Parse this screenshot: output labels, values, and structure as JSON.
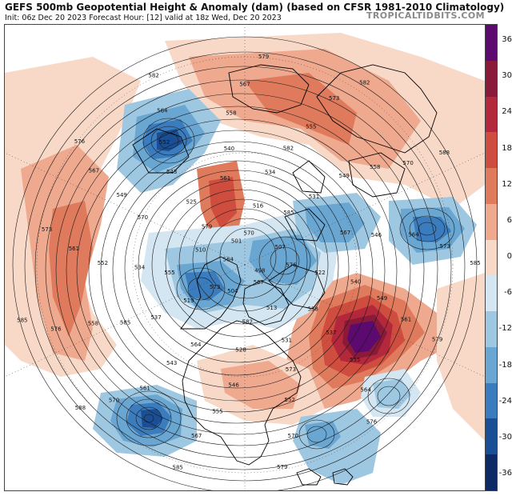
{
  "header": {
    "title": "GEFS 500mb Geopotential Height & Anomaly (dam) (based on CFSR 1981-2010 Climatology)",
    "subtitle": "Init: 06z Dec 20 2023   Forecast Hour: [12]   valid at 18z Wed, Dec 20 2023",
    "brand": "TROPICALTIDBITS.COM"
  },
  "colorbar": {
    "ticks": [
      "36",
      "30",
      "24",
      "18",
      "12",
      "6",
      "0",
      "-6",
      "-12",
      "-18",
      "-24",
      "-30",
      "-36"
    ],
    "values": [
      36,
      30,
      24,
      18,
      12,
      6,
      0,
      -6,
      -12,
      -18,
      -24,
      -30,
      -36
    ],
    "colors": [
      "#5c0a70",
      "#8b1a3a",
      "#b3283a",
      "#cf4d3e",
      "#e07a5c",
      "#eea98f",
      "#f8d9c8",
      "#d3e6f2",
      "#9ec8e2",
      "#6aa6d2",
      "#3a7cbd",
      "#1b4f95",
      "#0c2a66"
    ]
  },
  "map": {
    "projection": "north-polar-stereographic",
    "contour_interval_dam": 3,
    "height_labels": [
      "585",
      "588",
      "579",
      "576",
      "573",
      "570",
      "567",
      "564",
      "561",
      "558",
      "555",
      "552",
      "549",
      "546",
      "543",
      "540",
      "537",
      "534",
      "531",
      "528",
      "525",
      "522",
      "519",
      "516",
      "513",
      "510",
      "507",
      "504",
      "501",
      "498",
      "585",
      "582",
      "579",
      "576",
      "573",
      "570",
      "567",
      "564",
      "561",
      "558",
      "555",
      "552",
      "549",
      "585",
      "582",
      "573",
      "570",
      "567",
      "564",
      "561",
      "558",
      "555",
      "585",
      "582",
      "579",
      "576",
      "573",
      "570",
      "567",
      "564",
      "588",
      "585",
      "582",
      "579",
      "576",
      "573",
      "570",
      "567",
      "564",
      "561",
      "558",
      "555",
      "552",
      "549",
      "546",
      "543",
      "540",
      "537",
      "534",
      "531"
    ],
    "anomaly_centers": [
      {
        "kind": "positive",
        "value_dam": 36,
        "region": "Northwest Atlantic / east of Canada"
      },
      {
        "kind": "positive",
        "value_dam": 24,
        "region": "Chukchi / East Siberian Sea"
      },
      {
        "kind": "positive",
        "value_dam": 18,
        "region": "Northeast Pacific"
      },
      {
        "kind": "positive",
        "value_dam": 12,
        "region": "Eastern Europe / Russia"
      },
      {
        "kind": "negative",
        "value_dam": -24,
        "region": "Siberia"
      },
      {
        "kind": "negative",
        "value_dam": -24,
        "region": "Northern Europe"
      },
      {
        "kind": "negative",
        "value_dam": -24,
        "region": "Central Atlantic"
      },
      {
        "kind": "negative",
        "value_dam": -18,
        "region": "Central Arctic"
      },
      {
        "kind": "negative",
        "value_dam": -18,
        "region": "Western North America"
      },
      {
        "kind": "negative",
        "value_dam": -12,
        "region": "Southeast United States"
      }
    ]
  }
}
